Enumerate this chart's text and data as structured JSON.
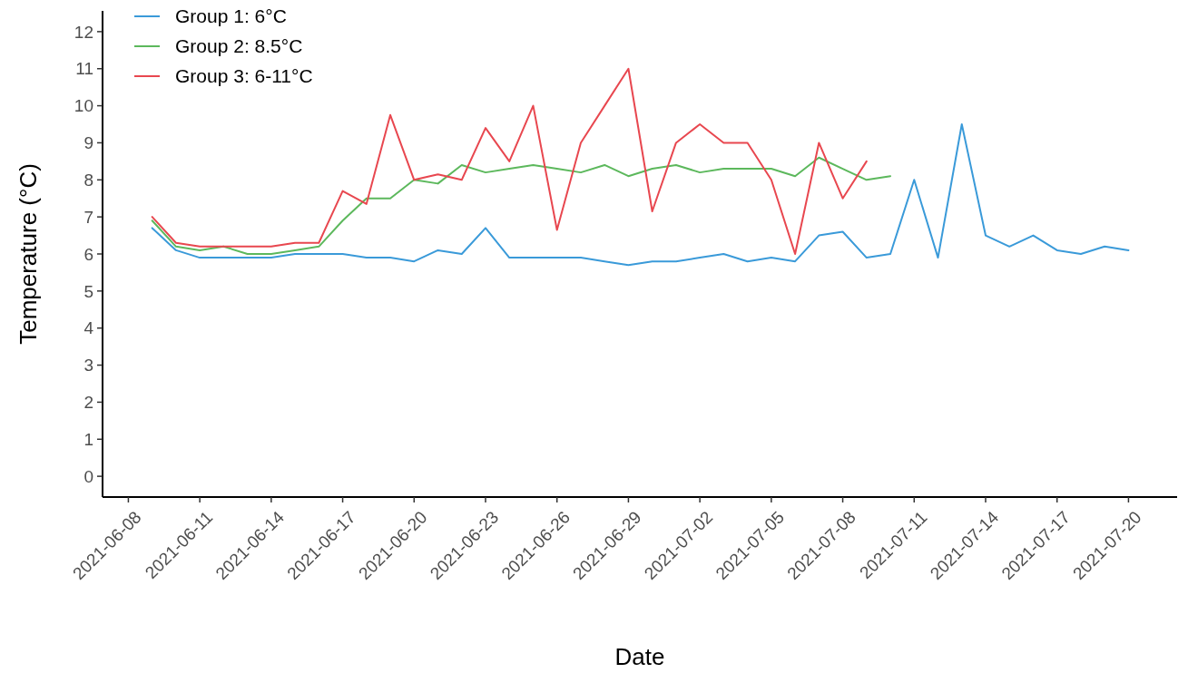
{
  "chart_data": {
    "type": "line",
    "xlabel": "Date",
    "ylabel": "Temperature (°C)",
    "xlim": [
      "2021-06-06T22:00",
      "2021-07-22T01:00"
    ],
    "xticks": [
      "2021-06-08",
      "2021-06-11",
      "2021-06-14",
      "2021-06-17",
      "2021-06-20",
      "2021-06-23",
      "2021-06-26",
      "2021-06-29",
      "2021-07-02",
      "2021-07-05",
      "2021-07-08",
      "2021-07-11",
      "2021-07-14",
      "2021-07-17",
      "2021-07-20"
    ],
    "ylim": [
      -0.56,
      12.56
    ],
    "yticks": [
      0,
      1,
      2,
      3,
      4,
      5,
      6,
      7,
      8,
      9,
      10,
      11,
      12
    ],
    "grid": false,
    "legend": "top left",
    "marker": "none",
    "line_style": "solid",
    "series": [
      {
        "name": "Group 1: 6°C",
        "color": "#3a9ad9",
        "x": [
          "2021-06-09",
          "2021-06-10",
          "2021-06-11",
          "2021-06-12",
          "2021-06-13",
          "2021-06-14",
          "2021-06-15",
          "2021-06-16",
          "2021-06-17",
          "2021-06-18",
          "2021-06-19",
          "2021-06-20",
          "2021-06-21",
          "2021-06-22",
          "2021-06-23",
          "2021-06-24",
          "2021-06-25",
          "2021-06-26",
          "2021-06-27",
          "2021-06-28",
          "2021-06-29",
          "2021-06-30",
          "2021-07-01",
          "2021-07-02",
          "2021-07-03",
          "2021-07-04",
          "2021-07-05",
          "2021-07-06",
          "2021-07-07",
          "2021-07-08",
          "2021-07-09",
          "2021-07-10",
          "2021-07-11",
          "2021-07-12",
          "2021-07-13",
          "2021-07-14",
          "2021-07-15",
          "2021-07-16",
          "2021-07-17",
          "2021-07-18",
          "2021-07-19",
          "2021-07-20"
        ],
        "values": [
          6.7,
          6.1,
          5.9,
          5.9,
          5.9,
          5.9,
          6.0,
          6.0,
          6.0,
          5.9,
          5.9,
          5.8,
          6.1,
          6.0,
          6.7,
          5.9,
          5.9,
          5.9,
          5.9,
          5.8,
          5.7,
          5.8,
          5.8,
          5.9,
          6.0,
          5.8,
          5.9,
          5.8,
          6.5,
          6.6,
          5.9,
          6.0,
          8.0,
          5.9,
          9.5,
          6.5,
          6.2,
          6.5,
          6.1,
          6.0,
          6.2,
          6.1
        ]
      },
      {
        "name": "Group 2: 8.5°C",
        "color": "#5cb85c",
        "x": [
          "2021-06-09",
          "2021-06-10",
          "2021-06-11",
          "2021-06-12",
          "2021-06-13",
          "2021-06-14",
          "2021-06-15",
          "2021-06-16",
          "2021-06-17",
          "2021-06-18",
          "2021-06-19",
          "2021-06-20",
          "2021-06-21",
          "2021-06-22",
          "2021-06-23",
          "2021-06-24",
          "2021-06-25",
          "2021-06-26",
          "2021-06-27",
          "2021-06-28",
          "2021-06-29",
          "2021-06-30",
          "2021-07-01",
          "2021-07-02",
          "2021-07-03",
          "2021-07-04",
          "2021-07-05",
          "2021-07-06",
          "2021-07-07",
          "2021-07-08",
          "2021-07-09",
          "2021-07-10"
        ],
        "values": [
          6.9,
          6.2,
          6.1,
          6.2,
          6.0,
          6.0,
          6.1,
          6.2,
          6.9,
          7.5,
          7.5,
          8.0,
          7.9,
          8.4,
          8.2,
          8.3,
          8.4,
          8.3,
          8.2,
          8.4,
          8.1,
          8.3,
          8.4,
          8.2,
          8.3,
          8.3,
          8.3,
          8.1,
          8.6,
          8.3,
          8.0,
          8.1
        ]
      },
      {
        "name": "Group 3: 6-11°C",
        "color": "#e8474f",
        "x": [
          "2021-06-09",
          "2021-06-10",
          "2021-06-11",
          "2021-06-12",
          "2021-06-13",
          "2021-06-14",
          "2021-06-15",
          "2021-06-16",
          "2021-06-17",
          "2021-06-18",
          "2021-06-19",
          "2021-06-20",
          "2021-06-21",
          "2021-06-22",
          "2021-06-23",
          "2021-06-24",
          "2021-06-25",
          "2021-06-26",
          "2021-06-27",
          "2021-06-28",
          "2021-06-29",
          "2021-06-30",
          "2021-07-01",
          "2021-07-02",
          "2021-07-03",
          "2021-07-04",
          "2021-07-05",
          "2021-07-06",
          "2021-07-07",
          "2021-07-08",
          "2021-07-09"
        ],
        "values": [
          7.0,
          6.3,
          6.2,
          6.2,
          6.2,
          6.2,
          6.3,
          6.3,
          7.7,
          7.35,
          9.75,
          8.0,
          8.15,
          8.0,
          9.4,
          8.5,
          10.0,
          6.65,
          9.0,
          10.0,
          11.0,
          7.15,
          9.0,
          9.5,
          9.0,
          9.0,
          8.0,
          6.0,
          9.0,
          7.5,
          8.5
        ]
      }
    ]
  }
}
